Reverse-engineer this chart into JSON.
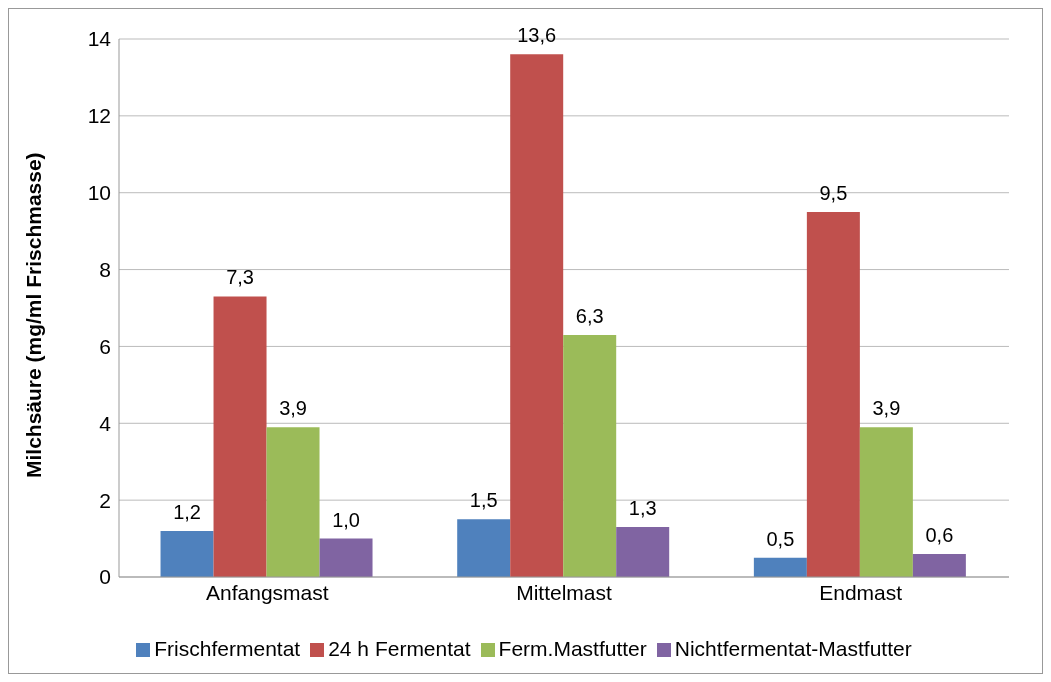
{
  "chart_data": {
    "type": "bar",
    "ylabel": "Milchsäure (mg/ml Frischmasse)",
    "categories": [
      "Anfangsmast",
      "Mittelmast",
      "Endmast"
    ],
    "series": [
      {
        "name": "Frischfermentat",
        "color": "#4f81bd",
        "values": [
          1.2,
          1.5,
          0.5
        ],
        "value_labels": [
          "1,2",
          "1,5",
          "0,5"
        ]
      },
      {
        "name": "24 h Fermentat",
        "color": "#c0504d",
        "values": [
          7.3,
          13.6,
          9.5
        ],
        "value_labels": [
          "7,3",
          "13,6",
          "9,5"
        ]
      },
      {
        "name": "Ferm.Mastfutter",
        "color": "#9bbb59",
        "values": [
          3.9,
          6.3,
          3.9
        ],
        "value_labels": [
          "3,9",
          "6,3",
          "3,9"
        ]
      },
      {
        "name": "Nichtfermentat-Mastfutter",
        "color": "#8064a2",
        "values": [
          1.0,
          1.3,
          0.6
        ],
        "value_labels": [
          "1,0",
          "1,3",
          "0,6"
        ]
      }
    ],
    "ylim": [
      0,
      14
    ],
    "yticks": [
      0,
      2,
      4,
      6,
      8,
      10,
      12,
      14
    ],
    "grid": "y",
    "legend": "bottom"
  }
}
